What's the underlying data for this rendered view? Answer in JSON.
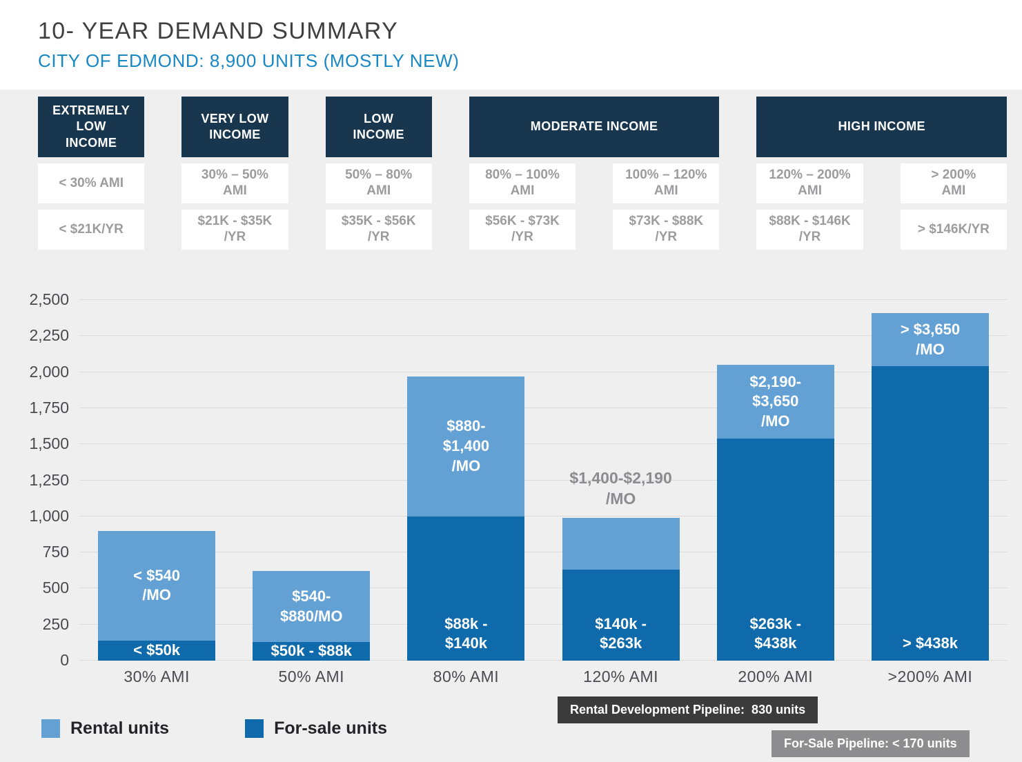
{
  "header": {
    "title": "10- YEAR DEMAND SUMMARY",
    "subtitle": "CITY OF EDMOND: 8,900 UNITS (MOSTLY NEW)"
  },
  "income_categories": [
    {
      "label": "EXTREMELY\nLOW\nINCOME",
      "columns": [
        {
          "ami": "< 30% AMI",
          "income": "< $21K/YR"
        }
      ]
    },
    {
      "label": "VERY LOW\nINCOME",
      "columns": [
        {
          "ami": "30% – 50%\nAMI",
          "income": "$21K - $35K\n/YR"
        }
      ]
    },
    {
      "label": "LOW\nINCOME",
      "columns": [
        {
          "ami": "50% – 80%\nAMI",
          "income": "$35K - $56K\n/YR"
        }
      ]
    },
    {
      "label": "MODERATE INCOME",
      "columns": [
        {
          "ami": "80% – 100%\nAMI",
          "income": "$56K - $73K\n/YR"
        },
        {
          "ami": "100% – 120%\nAMI",
          "income": "$73K - $88K\n/YR"
        }
      ]
    },
    {
      "label": "HIGH INCOME",
      "columns": [
        {
          "ami": "120% – 200%\nAMI",
          "income": "$88K - $146K\n/YR"
        },
        {
          "ami": "> 200%\nAMI",
          "income": "> $146K/YR"
        }
      ]
    }
  ],
  "chart_data": {
    "type": "bar",
    "stacked": true,
    "title": "10- YEAR DEMAND SUMMARY",
    "subtitle": "CITY OF EDMOND: 8,900 UNITS (MOSTLY NEW)",
    "categories": [
      "30% AMI",
      "50% AMI",
      "80% AMI",
      "120% AMI",
      "200% AMI",
      ">200% AMI"
    ],
    "series": [
      {
        "name": "For-sale units",
        "color": "#0f6aab",
        "values": [
          140,
          130,
          1000,
          630,
          1540,
          2040
        ],
        "labels": [
          "< $50k",
          "$50k - $88k",
          "$88k -\n$140k",
          "$140k -\n$263k",
          "$263k -\n$438k",
          "> $438k"
        ]
      },
      {
        "name": "Rental units",
        "color": "#63a1d5",
        "values": [
          760,
          490,
          970,
          360,
          510,
          370
        ],
        "labels": [
          "< $540\n/MO",
          "$540-\n$880/MO",
          "$880-\n$1,400\n/MO",
          "$1,400-$2,190\n/MO",
          "$2,190-\n$3,650\n/MO",
          "> $3,650\n/MO"
        ]
      }
    ],
    "rental_label_above": [
      false,
      false,
      false,
      true,
      false,
      false
    ],
    "ylim": [
      0,
      2500
    ],
    "ytick_step": 250,
    "ytick_labels": [
      "0",
      "250",
      "500",
      "750",
      "1,000",
      "1,250",
      "1,500",
      "1,750",
      "2,000",
      "2,250",
      "2,500"
    ],
    "grid": true,
    "legend_position": "bottom-left"
  },
  "legend": [
    {
      "label": "Rental units",
      "color": "#63a1d5"
    },
    {
      "label": "For-sale units",
      "color": "#0f6aab"
    }
  ],
  "annotations": {
    "rental_pipeline": "Rental Development Pipeline:  830 units",
    "forsale_pipeline": "For-Sale Pipeline: < 170 units"
  }
}
